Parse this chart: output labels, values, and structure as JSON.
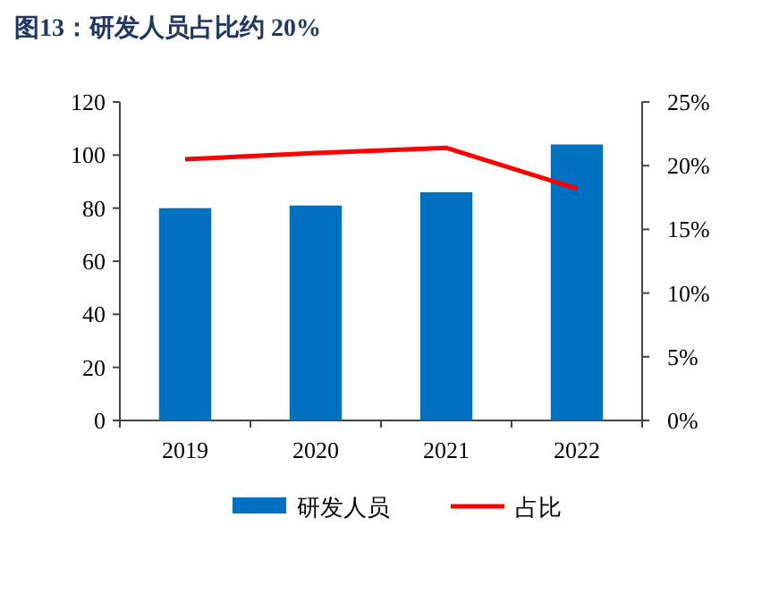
{
  "chart_data": {
    "type": "bar",
    "title": "图13：研发人员占比约 20%",
    "categories": [
      "2019",
      "2020",
      "2021",
      "2022"
    ],
    "series": [
      {
        "name": "研发人员",
        "color": "#0070c0",
        "values": [
          80,
          81,
          86,
          104
        ]
      },
      {
        "name": "占比",
        "type": "line",
        "color": "#ff0000",
        "axis": "y2",
        "values": [
          20.5,
          21.0,
          21.4,
          18.2
        ]
      }
    ],
    "ylim": [
      0,
      120
    ],
    "yticks": [
      0,
      20,
      40,
      60,
      80,
      100,
      120
    ],
    "y2lim": [
      0,
      25
    ],
    "y2ticks": [
      {
        "value": 0,
        "label": "0%"
      },
      {
        "value": 5,
        "label": "5%"
      },
      {
        "value": 10,
        "label": "10%"
      },
      {
        "value": 15,
        "label": "15%"
      },
      {
        "value": 20,
        "label": "20%"
      },
      {
        "value": 25,
        "label": "25%"
      }
    ],
    "legend": "bottom",
    "grid": false,
    "marker": "none",
    "line_style": "solid"
  }
}
